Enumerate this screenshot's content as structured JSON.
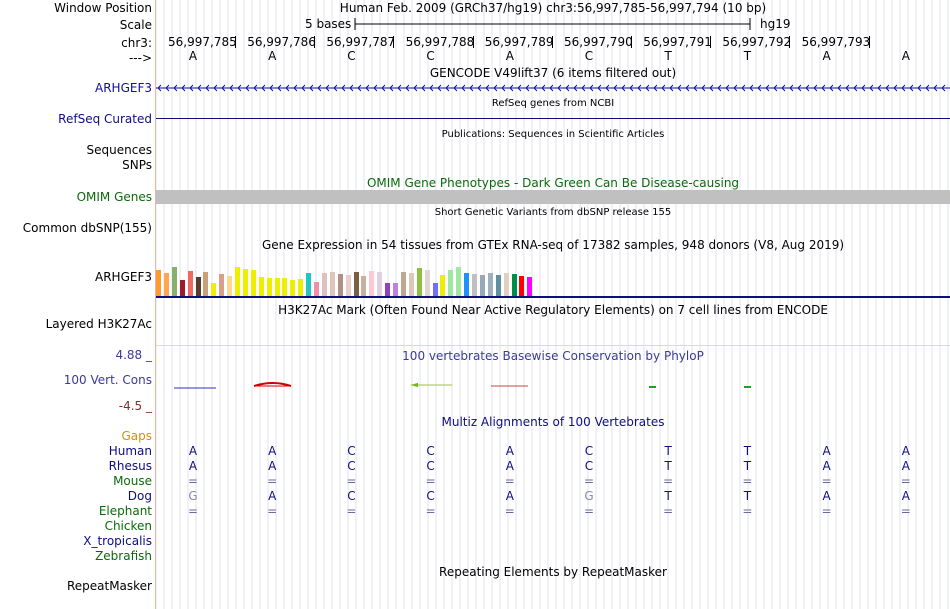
{
  "sidebar": {
    "window_position": "Window Position",
    "scale": "Scale",
    "chrom": "chr3:",
    "arrow": "--->",
    "arhgef3_gencode": "ARHGEF3",
    "refseq_curated": "RefSeq Curated",
    "sequences": "Sequences",
    "snps": "SNPs",
    "omim_genes": "OMIM Genes",
    "common_dbsnp": "Common dbSNP(155)",
    "arhgef3_gtex": "ARHGEF3",
    "layered_h3k27ac": "Layered H3K27Ac",
    "cons_max": "4.88 _",
    "vert_cons": "100 Vert. Cons",
    "cons_min": "-4.5 _",
    "gaps": "Gaps",
    "species": [
      "Human",
      "Rhesus",
      "Mouse",
      "Dog",
      "Elephant",
      "Chicken",
      "X_tropicalis",
      "Zebrafish"
    ],
    "repeatmasker": "RepeatMasker"
  },
  "header": {
    "title": "Human Feb. 2009 (GRCh37/hg19)   chr3:56,997,785-56,997,794 (10 bp)",
    "scale_text": "5 bases",
    "scale_assembly": "hg19"
  },
  "coordinates": [
    "56,997,785",
    "56,997,786",
    "56,997,787",
    "56,997,788",
    "56,997,789",
    "56,997,790",
    "56,997,791",
    "56,997,792",
    "56,997,793"
  ],
  "bases": [
    "A",
    "A",
    "C",
    "C",
    "A",
    "C",
    "T",
    "T",
    "A",
    "A"
  ],
  "tracks": {
    "gencode": "GENCODE V49lift37 (6 items filtered out)",
    "refseq": "RefSeq genes from NCBI",
    "publications": "Publications: Sequences in Scientific Articles",
    "omim": "OMIM Gene Phenotypes - Dark Green Can Be Disease-causing",
    "dbsnp": "Short Genetic Variants from dbSNP release 155",
    "gtex": "Gene Expression in 54 tissues from GTEx RNA-seq of 17382 samples, 948 donors (V8, Aug 2019)",
    "h3k27ac": "H3K27Ac Mark (Often Found Near Active Regulatory Elements) on 7 cell lines from ENCODE",
    "phylop": "100 vertebrates Basewise Conservation by PhyloP",
    "multiz": "Multiz Alignments of 100 Vertebrates",
    "repeatmasker": "Repeating Elements by RepeatMasker"
  },
  "alignment": {
    "human": [
      "A",
      "A",
      "C",
      "C",
      "A",
      "C",
      "T",
      "T",
      "A",
      "A"
    ],
    "rhesus": [
      "A",
      "A",
      "C",
      "C",
      "A",
      "C",
      "T",
      "T",
      "A",
      "A"
    ],
    "mouse": [
      "=",
      "=",
      "=",
      "=",
      "=",
      "=",
      "=",
      "=",
      "=",
      "="
    ],
    "dog": [
      "G",
      "A",
      "C",
      "C",
      "A",
      "G",
      "T",
      "T",
      "A",
      "A"
    ],
    "elephant": [
      "=",
      "=",
      "=",
      "=",
      "=",
      "=",
      "=",
      "=",
      "=",
      "="
    ]
  },
  "gtex_bars": [
    {
      "h": 0.62,
      "c": "#ff9a31"
    },
    {
      "h": 0.55,
      "c": "#ffa54f"
    },
    {
      "h": 0.68,
      "c": "#88b06c"
    },
    {
      "h": 0.38,
      "c": "#9a1c2e"
    },
    {
      "h": 0.6,
      "c": "#ee6c5e"
    },
    {
      "h": 0.45,
      "c": "#553d2a"
    },
    {
      "h": 0.56,
      "c": "#c8a07a"
    },
    {
      "h": 0.3,
      "c": "#eeee00"
    },
    {
      "h": 0.52,
      "c": "#d8a088"
    },
    {
      "h": 0.48,
      "c": "#ffd890"
    },
    {
      "h": 0.68,
      "c": "#eeee00"
    },
    {
      "h": 0.64,
      "c": "#eeee00"
    },
    {
      "h": 0.62,
      "c": "#eeee00"
    },
    {
      "h": 0.45,
      "c": "#eeee00"
    },
    {
      "h": 0.42,
      "c": "#eeee00"
    },
    {
      "h": 0.44,
      "c": "#eeee00"
    },
    {
      "h": 0.42,
      "c": "#eeee00"
    },
    {
      "h": 0.38,
      "c": "#eeee00"
    },
    {
      "h": 0.4,
      "c": "#eeee00"
    },
    {
      "h": 0.55,
      "c": "#22c5c5"
    },
    {
      "h": 0.34,
      "c": "#ee90a8"
    },
    {
      "h": 0.55,
      "c": "#e0c0c0"
    },
    {
      "h": 0.56,
      "c": "#dcc6bc"
    },
    {
      "h": 0.52,
      "c": "#b09080"
    },
    {
      "h": 0.5,
      "c": "#e8d0c8"
    },
    {
      "h": 0.56,
      "c": "#7a6040"
    },
    {
      "h": 0.48,
      "c": "#c8b0a0"
    },
    {
      "h": 0.6,
      "c": "#ffc8d0"
    },
    {
      "h": 0.58,
      "c": "#e0d0e0"
    },
    {
      "h": 0.32,
      "c": "#9040c0"
    },
    {
      "h": 0.3,
      "c": "#c080e0"
    },
    {
      "h": 0.56,
      "c": "#c0a890"
    },
    {
      "h": 0.54,
      "c": "#dcc8b8"
    },
    {
      "h": 0.66,
      "c": "#8ec040"
    },
    {
      "h": 0.62,
      "c": "#ddd8d0"
    },
    {
      "h": 0.3,
      "c": "#7070ff"
    },
    {
      "h": 0.5,
      "c": "#eeee00"
    },
    {
      "h": 0.62,
      "c": "#a0e8a0"
    },
    {
      "h": 0.68,
      "c": "#a0e8a0"
    },
    {
      "h": 0.54,
      "c": "#2090ff"
    },
    {
      "h": 0.52,
      "c": "#c0c0c0"
    },
    {
      "h": 0.5,
      "c": "#98a8b8"
    },
    {
      "h": 0.54,
      "c": "#a0b0c0"
    },
    {
      "h": 0.5,
      "c": "#6090a0"
    },
    {
      "h": 0.54,
      "c": "#e0d0c0"
    },
    {
      "h": 0.52,
      "c": "#008c4a"
    },
    {
      "h": 0.48,
      "c": "#ff0000"
    },
    {
      "h": 0.46,
      "c": "#ff00ff"
    }
  ]
}
